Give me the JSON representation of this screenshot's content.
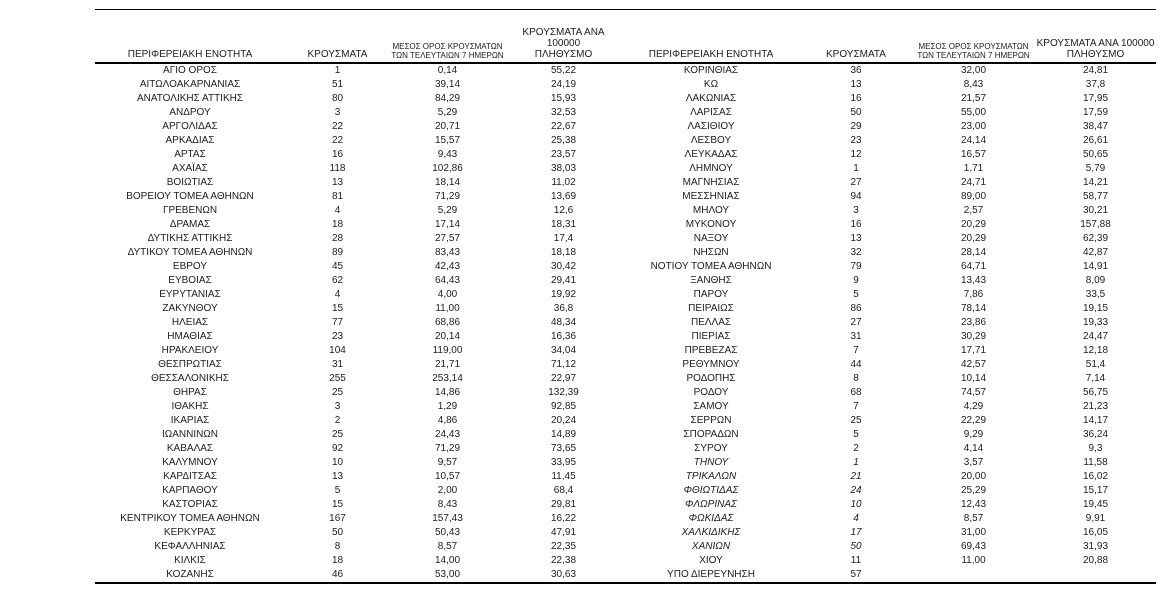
{
  "page": {
    "background": "#ffffff",
    "text_color": "#1c1c1c",
    "line_color": "#000000"
  },
  "headers": {
    "region": "ΠΕΡΙΦΕΡΕΙΑΚΗ ΕΝΟΤΗΤΑ",
    "cases": "ΚΡΟΥΣΜΑΤΑ",
    "avg7": "ΜΕΣΟΣ ΟΡΟΣ ΚΡΟΥΣΜΑΤΩΝ\nΤΩΝ ΤΕΛΕΥΤΑΙΩΝ 7 ΗΜΕΡΩΝ",
    "per100k": "ΚΡΟΥΣΜΑΤΑ ΑΝΑ 100000\nΠΛΗΘΥΣΜΟ"
  },
  "left_rows": [
    {
      "name": "ΑΓΙΟ ΟΡΟΣ",
      "cases": "1",
      "avg7": "0,14",
      "per100k": "55,22"
    },
    {
      "name": "ΑΙΤΩΛΟΑΚΑΡΝΑΝΙΑΣ",
      "cases": "51",
      "avg7": "39,14",
      "per100k": "24,19"
    },
    {
      "name": "ΑΝΑΤΟΛΙΚΗΣ ΑΤΤΙΚΗΣ",
      "cases": "80",
      "avg7": "84,29",
      "per100k": "15,93"
    },
    {
      "name": "ΑΝΔΡΟΥ",
      "cases": "3",
      "avg7": "5,29",
      "per100k": "32,53"
    },
    {
      "name": "ΑΡΓΟΛΙΔΑΣ",
      "cases": "22",
      "avg7": "20,71",
      "per100k": "22,67"
    },
    {
      "name": "ΑΡΚΑΔΙΑΣ",
      "cases": "22",
      "avg7": "15,57",
      "per100k": "25,38"
    },
    {
      "name": "ΑΡΤΑΣ",
      "cases": "16",
      "avg7": "9,43",
      "per100k": "23,57"
    },
    {
      "name": "ΑΧΑΪΑΣ",
      "cases": "118",
      "avg7": "102,86",
      "per100k": "38,03"
    },
    {
      "name": "ΒΟΙΩΤΙΑΣ",
      "cases": "13",
      "avg7": "18,14",
      "per100k": "11,02"
    },
    {
      "name": "ΒΟΡΕΙΟΥ ΤΟΜΕΑ ΑΘΗΝΩΝ",
      "cases": "81",
      "avg7": "71,29",
      "per100k": "13,69"
    },
    {
      "name": "ΓΡΕΒΕΝΩΝ",
      "cases": "4",
      "avg7": "5,29",
      "per100k": "12,6"
    },
    {
      "name": "ΔΡΑΜΑΣ",
      "cases": "18",
      "avg7": "17,14",
      "per100k": "18,31"
    },
    {
      "name": "ΔΥΤΙΚΗΣ ΑΤΤΙΚΗΣ",
      "cases": "28",
      "avg7": "27,57",
      "per100k": "17,4"
    },
    {
      "name": "ΔΥΤΙΚΟΥ ΤΟΜΕΑ ΑΘΗΝΩΝ",
      "cases": "89",
      "avg7": "83,43",
      "per100k": "18,18"
    },
    {
      "name": "ΕΒΡΟΥ",
      "cases": "45",
      "avg7": "42,43",
      "per100k": "30,42"
    },
    {
      "name": "ΕΥΒΟΙΑΣ",
      "cases": "62",
      "avg7": "64,43",
      "per100k": "29,41"
    },
    {
      "name": "ΕΥΡΥΤΑΝΙΑΣ",
      "cases": "4",
      "avg7": "4,00",
      "per100k": "19,92"
    },
    {
      "name": "ΖΑΚΥΝΘΟΥ",
      "cases": "15",
      "avg7": "11,00",
      "per100k": "36,8"
    },
    {
      "name": "ΗΛΕΙΑΣ",
      "cases": "77",
      "avg7": "68,86",
      "per100k": "48,34"
    },
    {
      "name": "ΗΜΑΘΙΑΣ",
      "cases": "23",
      "avg7": "20,14",
      "per100k": "16,36"
    },
    {
      "name": "ΗΡΑΚΛΕΙΟΥ",
      "cases": "104",
      "avg7": "119,00",
      "per100k": "34,04"
    },
    {
      "name": "ΘΕΣΠΡΩΤΙΑΣ",
      "cases": "31",
      "avg7": "21,71",
      "per100k": "71,12"
    },
    {
      "name": "ΘΕΣΣΑΛΟΝΙΚΗΣ",
      "cases": "255",
      "avg7": "253,14",
      "per100k": "22,97"
    },
    {
      "name": "ΘΗΡΑΣ",
      "cases": "25",
      "avg7": "14,86",
      "per100k": "132,39"
    },
    {
      "name": "ΙΘΑΚΗΣ",
      "cases": "3",
      "avg7": "1,29",
      "per100k": "92,85"
    },
    {
      "name": "ΙΚΑΡΙΑΣ",
      "cases": "2",
      "avg7": "4,86",
      "per100k": "20,24"
    },
    {
      "name": "ΙΩΑΝΝΙΝΩΝ",
      "cases": "25",
      "avg7": "24,43",
      "per100k": "14,89"
    },
    {
      "name": "ΚΑΒΑΛΑΣ",
      "cases": "92",
      "avg7": "71,29",
      "per100k": "73,65"
    },
    {
      "name": "ΚΑΛΥΜΝΟΥ",
      "cases": "10",
      "avg7": "9,57",
      "per100k": "33,95"
    },
    {
      "name": "ΚΑΡΔΙΤΣΑΣ",
      "cases": "13",
      "avg7": "10,57",
      "per100k": "11,45"
    },
    {
      "name": "ΚΑΡΠΑΘΟΥ",
      "cases": "5",
      "avg7": "2,00",
      "per100k": "68,4"
    },
    {
      "name": "ΚΑΣΤΟΡΙΑΣ",
      "cases": "15",
      "avg7": "8,43",
      "per100k": "29,81"
    },
    {
      "name": "ΚΕΝΤΡΙΚΟΥ ΤΟΜΕΑ ΑΘΗΝΩΝ",
      "cases": "167",
      "avg7": "157,43",
      "per100k": "16,22"
    },
    {
      "name": "ΚΕΡΚΥΡΑΣ",
      "cases": "50",
      "avg7": "50,43",
      "per100k": "47,91"
    },
    {
      "name": "ΚΕΦΑΛΛΗΝΙΑΣ",
      "cases": "8",
      "avg7": "8,57",
      "per100k": "22,35"
    },
    {
      "name": "ΚΙΛΚΙΣ",
      "cases": "18",
      "avg7": "14,00",
      "per100k": "22,38"
    },
    {
      "name": "ΚΟΖΑΝΗΣ",
      "cases": "46",
      "avg7": "53,00",
      "per100k": "30,63"
    }
  ],
  "right_rows": [
    {
      "name": "ΚΟΡΙΝΘΙΑΣ",
      "cases": "36",
      "avg7": "32,00",
      "per100k": "24,81"
    },
    {
      "name": "ΚΩ",
      "cases": "13",
      "avg7": "8,43",
      "per100k": "37,8"
    },
    {
      "name": "ΛΑΚΩΝΙΑΣ",
      "cases": "16",
      "avg7": "21,57",
      "per100k": "17,95"
    },
    {
      "name": "ΛΑΡΙΣΑΣ",
      "cases": "50",
      "avg7": "55,00",
      "per100k": "17,59"
    },
    {
      "name": "ΛΑΣΙΘΙΟΥ",
      "cases": "29",
      "avg7": "23,00",
      "per100k": "38,47"
    },
    {
      "name": "ΛΕΣΒΟΥ",
      "cases": "23",
      "avg7": "24,14",
      "per100k": "26,61"
    },
    {
      "name": "ΛΕΥΚΑΔΑΣ",
      "cases": "12",
      "avg7": "16,57",
      "per100k": "50,65"
    },
    {
      "name": "ΛΗΜΝΟΥ",
      "cases": "1",
      "avg7": "1,71",
      "per100k": "5,79"
    },
    {
      "name": "ΜΑΓΝΗΣΙΑΣ",
      "cases": "27",
      "avg7": "24,71",
      "per100k": "14,21"
    },
    {
      "name": "ΜΕΣΣΗΝΙΑΣ",
      "cases": "94",
      "avg7": "89,00",
      "per100k": "58,77"
    },
    {
      "name": "ΜΗΛΟΥ",
      "cases": "3",
      "avg7": "2,57",
      "per100k": "30,21"
    },
    {
      "name": "ΜΥΚΟΝΟΥ",
      "cases": "16",
      "avg7": "20,29",
      "per100k": "157,88"
    },
    {
      "name": "ΝΑΞΟΥ",
      "cases": "13",
      "avg7": "20,29",
      "per100k": "62,39"
    },
    {
      "name": "ΝΗΣΩΝ",
      "cases": "32",
      "avg7": "28,14",
      "per100k": "42,87"
    },
    {
      "name": "ΝΟΤΙΟΥ ΤΟΜΕΑ ΑΘΗΝΩΝ",
      "cases": "79",
      "avg7": "64,71",
      "per100k": "14,91"
    },
    {
      "name": "ΞΑΝΘΗΣ",
      "cases": "9",
      "avg7": "13,43",
      "per100k": "8,09"
    },
    {
      "name": "ΠΑΡΟΥ",
      "cases": "5",
      "avg7": "7,86",
      "per100k": "33,5"
    },
    {
      "name": "ΠΕΙΡΑΙΩΣ",
      "cases": "86",
      "avg7": "78,14",
      "per100k": "19,15"
    },
    {
      "name": "ΠΕΛΛΑΣ",
      "cases": "27",
      "avg7": "23,86",
      "per100k": "19,33"
    },
    {
      "name": "ΠΙΕΡΙΑΣ",
      "cases": "31",
      "avg7": "30,29",
      "per100k": "24,47"
    },
    {
      "name": "ΠΡΕΒΕΖΑΣ",
      "cases": "7",
      "avg7": "17,71",
      "per100k": "12,18"
    },
    {
      "name": "ΡΕΘΥΜΝΟΥ",
      "cases": "44",
      "avg7": "42,57",
      "per100k": "51,4"
    },
    {
      "name": "ΡΟΔΟΠΗΣ",
      "cases": "8",
      "avg7": "10,14",
      "per100k": "7,14"
    },
    {
      "name": "ΡΟΔΟΥ",
      "cases": "68",
      "avg7": "74,57",
      "per100k": "56,75"
    },
    {
      "name": "ΣΑΜΟΥ",
      "cases": "7",
      "avg7": "4,29",
      "per100k": "21,23"
    },
    {
      "name": "ΣΕΡΡΩΝ",
      "cases": "25",
      "avg7": "22,29",
      "per100k": "14,17"
    },
    {
      "name": "ΣΠΟΡΑΔΩΝ",
      "cases": "5",
      "avg7": "9,29",
      "per100k": "36,24"
    },
    {
      "name": "ΣΥΡΟΥ",
      "cases": "2",
      "avg7": "4,14",
      "per100k": "9,3"
    },
    {
      "name": "ΤΗΝΟΥ",
      "cases": "1",
      "avg7": "3,57",
      "per100k": "11,58",
      "italic": true
    },
    {
      "name": "ΤΡΙΚΑΛΩΝ",
      "cases": "21",
      "avg7": "20,00",
      "per100k": "16,02",
      "italic": true
    },
    {
      "name": "ΦΘΙΩΤΙΔΑΣ",
      "cases": "24",
      "avg7": "25,29",
      "per100k": "15,17",
      "italic": true
    },
    {
      "name": "ΦΛΩΡΙΝΑΣ",
      "cases": "10",
      "avg7": "12,43",
      "per100k": "19,45",
      "italic": true
    },
    {
      "name": "ΦΩΚΙΔΑΣ",
      "cases": "4",
      "avg7": "8,57",
      "per100k": "9,91",
      "italic": true
    },
    {
      "name": "ΧΑΛΚΙΔΙΚΗΣ",
      "cases": "17",
      "avg7": "31,00",
      "per100k": "16,05",
      "italic": true
    },
    {
      "name": "ΧΑΝΙΩΝ",
      "cases": "50",
      "avg7": "69,43",
      "per100k": "31,93",
      "italic": true
    },
    {
      "name": "ΧΙΟΥ",
      "cases": "11",
      "avg7": "11,00",
      "per100k": "20,88"
    },
    {
      "name": "ΥΠΟ ΔΙΕΡΕΥΝΗΣΗ",
      "cases": "57",
      "avg7": "",
      "per100k": ""
    }
  ]
}
